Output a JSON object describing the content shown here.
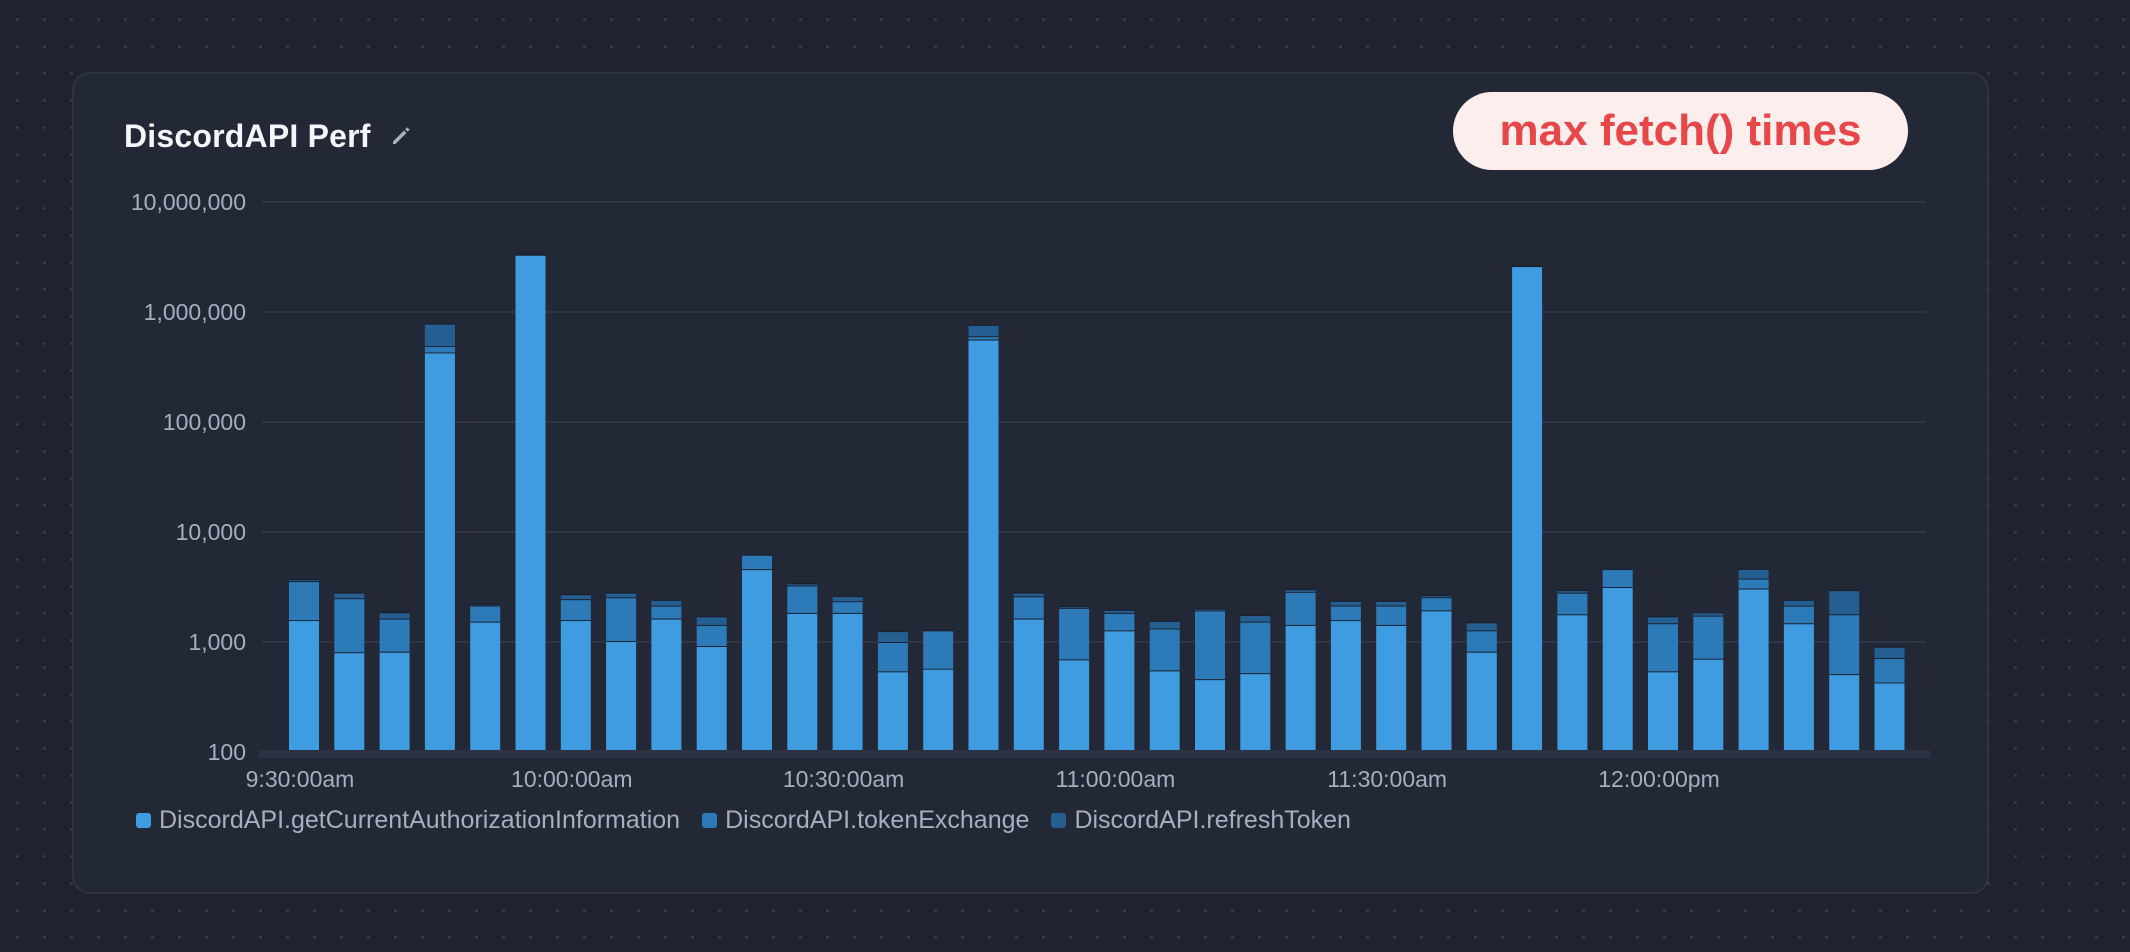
{
  "panel": {
    "title": "DiscordAPI Perf",
    "edit_icon": "pencil-icon",
    "annotation": "max fetch() times",
    "annotation_color": "#e8474a"
  },
  "chart_data": {
    "type": "bar",
    "stacked": true,
    "yscale": "log",
    "ylim": [
      100,
      10000000
    ],
    "yticks": [
      100,
      1000,
      10000,
      100000,
      1000000,
      10000000
    ],
    "ytick_labels": [
      "100",
      "1,000",
      "10,000",
      "100,000",
      "1,000,000",
      "10,000,000"
    ],
    "xtick_labels": [
      "9:30:00am",
      "10:00:00am",
      "10:30:00am",
      "11:00:00am",
      "11:30:00am",
      "12:00:00pm"
    ],
    "xtick_bar_index": [
      0,
      6,
      12,
      18,
      24,
      30
    ],
    "grid": true,
    "legend_position": "bottom-left",
    "series": [
      {
        "name": "DiscordAPI.getCurrentAuthorizationInformation",
        "color": "#3f9ce0",
        "values": [
          1550,
          790,
          800,
          420000,
          1500,
          3300000,
          1550,
          1000,
          1600,
          900,
          4500,
          1800,
          1800,
          530,
          560,
          550000,
          1600,
          680,
          1250,
          540,
          450,
          510,
          1400,
          1550,
          1400,
          1900,
          800,
          2600000,
          1750,
          3100,
          530,
          690,
          3000,
          1450,
          500,
          420
        ]
      },
      {
        "name": "DiscordAPI.tokenExchange",
        "color": "#2d7ab8",
        "values": [
          3500,
          2450,
          1600,
          480000,
          2100,
          3300000,
          2400,
          2500,
          2100,
          1400,
          6100,
          3200,
          2300,
          980,
          1250,
          590000,
          2550,
          2000,
          1800,
          1300,
          1900,
          1500,
          2800,
          2100,
          2100,
          2500,
          1250,
          2600000,
          2750,
          4500,
          1450,
          1700,
          3700,
          2100,
          1750,
          700
        ]
      },
      {
        "name": "DiscordAPI.refreshToken",
        "color": "#255f91",
        "values": [
          3700,
          2800,
          1850,
          780000,
          2200,
          3300000,
          2700,
          2800,
          2400,
          1700,
          6200,
          3400,
          2600,
          1250,
          1280,
          760000,
          2800,
          2100,
          1950,
          1550,
          2000,
          1750,
          3000,
          2350,
          2350,
          2650,
          1500,
          2600000,
          2950,
          4700,
          1700,
          1850,
          4600,
          2400,
          2950,
          900
        ]
      }
    ]
  }
}
